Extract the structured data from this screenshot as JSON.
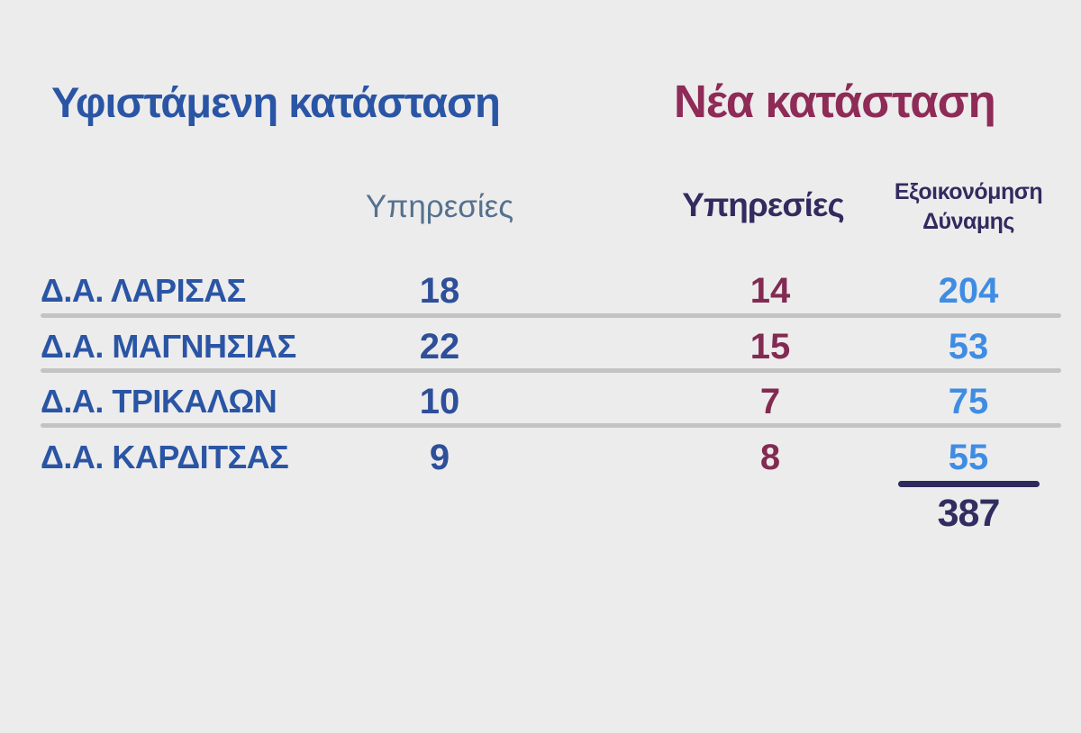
{
  "colors": {
    "background": "#edecec",
    "existing_header_blue": "#2a55a5",
    "new_header_maroon": "#8e2b57",
    "existing_value_blue": "#2e4f99",
    "new_value_maroon": "#822b52",
    "savings_light_blue": "#3f8de3",
    "dark_navy": "#332b5f",
    "muted_subheader": "#54718f",
    "divider_gray": "#c3c3c3"
  },
  "headers": {
    "existing": "Υφιστάμενη κατάσταση",
    "new": "Νέα κατάσταση"
  },
  "columns": {
    "existing_services": "Υπηρεσίες",
    "new_services": "Υπηρεσίες",
    "savings": "Εξοικονόμηση Δύναμης"
  },
  "table": {
    "rows": [
      {
        "label": "Δ.Α. ΛΑΡΙΣΑΣ",
        "existing_services": "18",
        "new_services": "14",
        "savings": "204"
      },
      {
        "label": "Δ.Α. ΜΑΓΝΗΣΙΑΣ",
        "existing_services": "22",
        "new_services": "15",
        "savings": "53"
      },
      {
        "label": "Δ.Α. ΤΡΙΚΑΛΩΝ",
        "existing_services": "10",
        "new_services": "7",
        "savings": "75"
      },
      {
        "label": "Δ.Α. ΚΑΡΔΙΤΣΑΣ",
        "existing_services": "9",
        "new_services": "8",
        "savings": "55"
      }
    ],
    "total_savings": "387"
  },
  "chart_data": {
    "type": "table",
    "title_left": "Υφιστάμενη κατάσταση",
    "title_right": "Νέα κατάσταση",
    "categories": [
      "Δ.Α. ΛΑΡΙΣΑΣ",
      "Δ.Α. ΜΑΓΝΗΣΙΑΣ",
      "Δ.Α. ΤΡΙΚΑΛΩΝ",
      "Δ.Α. ΚΑΡΔΙΤΣΑΣ"
    ],
    "series": [
      {
        "name": "Υπηρεσίες (Υφιστάμενη κατάσταση)",
        "values": [
          18,
          22,
          10,
          9
        ]
      },
      {
        "name": "Υπηρεσίες (Νέα κατάσταση)",
        "values": [
          14,
          15,
          7,
          8
        ]
      },
      {
        "name": "Εξοικονόμηση Δύναμης",
        "values": [
          204,
          53,
          75,
          55
        ]
      }
    ],
    "total": 387,
    "total_label_column": "Εξοικονόμηση Δύναμης"
  }
}
